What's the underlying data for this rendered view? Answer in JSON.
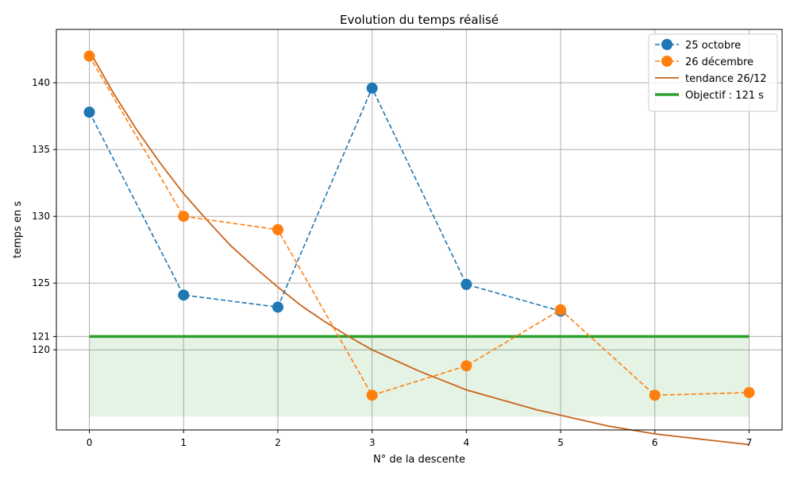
{
  "chart_data": {
    "type": "line",
    "title": "Evolution du temps réalisé",
    "xlabel": "N° de la descente",
    "ylabel": "temps en s",
    "xlim": [
      -0.35,
      7.35
    ],
    "ylim": [
      114,
      144
    ],
    "x_ticks": [
      0,
      1,
      2,
      3,
      4,
      5,
      6,
      7
    ],
    "y_ticks": [
      120,
      121,
      125,
      130,
      135,
      140
    ],
    "grid": true,
    "legend_position": "top-right",
    "series": [
      {
        "name": "25 octobre",
        "color": "#1f77b4",
        "style": "dashed-marker",
        "x": [
          0,
          1,
          2,
          3,
          4,
          5
        ],
        "values": [
          137.8,
          124.1,
          123.2,
          139.6,
          124.9,
          122.9
        ]
      },
      {
        "name": "26 décembre",
        "color": "#ff7f0e",
        "style": "dashed-marker",
        "x": [
          0,
          1,
          2,
          3,
          4,
          5,
          6,
          7
        ],
        "values": [
          142.0,
          130.0,
          129.0,
          116.6,
          118.8,
          123.0,
          116.6,
          116.8
        ]
      },
      {
        "name": "tendance 26/12",
        "color": "#c8641c",
        "style": "solid",
        "x": [
          0,
          0.25,
          0.5,
          0.75,
          1,
          1.25,
          1.5,
          1.75,
          2,
          2.25,
          2.5,
          2.75,
          3,
          3.25,
          3.5,
          3.75,
          4,
          4.25,
          4.5,
          4.75,
          5,
          5.25,
          5.5,
          5.75,
          6,
          6.25,
          6.5,
          6.75,
          7
        ],
        "values": [
          142.4,
          139.3,
          136.5,
          134.0,
          131.7,
          129.7,
          127.8,
          126.2,
          124.7,
          123.3,
          122.1,
          121.0,
          120.0,
          119.2,
          118.4,
          117.7,
          117.0,
          116.5,
          116.0,
          115.5,
          115.1,
          114.7,
          114.3,
          114.0,
          113.7,
          113.5,
          113.3,
          113.1,
          112.9
        ]
      },
      {
        "name": "Objectif : 121 s",
        "color": "#2ca02c",
        "style": "thick",
        "x": [
          0,
          7
        ],
        "values": [
          121,
          121
        ]
      }
    ],
    "shaded_region": {
      "x": [
        0,
        7
      ],
      "y": [
        115,
        121
      ],
      "color": "#2ca02c",
      "opacity": 0.12
    }
  }
}
